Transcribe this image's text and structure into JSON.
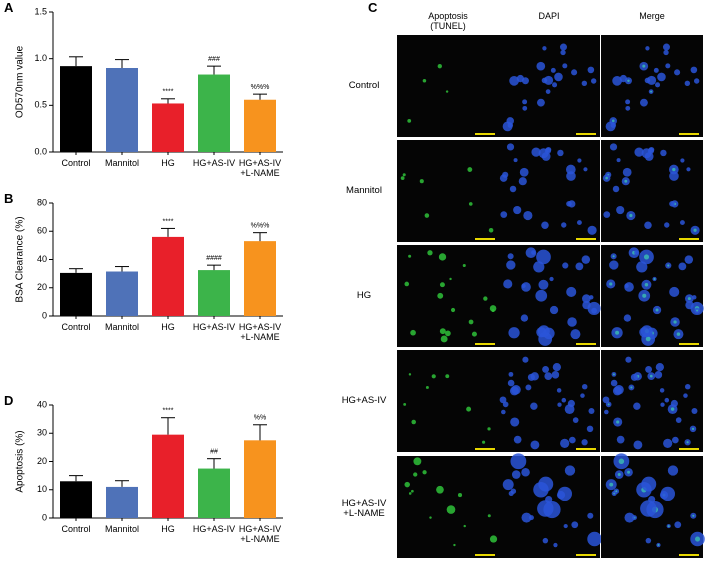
{
  "chart_data": [
    {
      "type": "bar",
      "label": "A",
      "ylabel": "OD570nm value",
      "categories": [
        "Control",
        "Mannitol",
        "HG",
        "HG+AS-IV",
        "HG+AS-IV\n+L-NAME"
      ],
      "values": [
        0.92,
        0.9,
        0.52,
        0.83,
        0.56
      ],
      "errors": [
        0.1,
        0.09,
        0.05,
        0.09,
        0.06
      ],
      "annotations": [
        null,
        null,
        "****",
        "###",
        "%%%"
      ],
      "colors": [
        "#000000",
        "#4f72b8",
        "#e8202a",
        "#3cb44a",
        "#f7931e"
      ],
      "ylim": [
        0,
        1.5
      ],
      "yticks": [
        {
          "value": 0,
          "label": "0.0"
        },
        {
          "value": 0.5,
          "label": "0.5"
        },
        {
          "value": 1,
          "label": "1.0"
        },
        {
          "value": 1.5,
          "label": "1.5"
        }
      ]
    },
    {
      "type": "bar",
      "label": "B",
      "ylabel": "BSA Clearance (%)",
      "categories": [
        "Control",
        "Mannitol",
        "HG",
        "HG+AS-IV",
        "HG+AS-IV\n+L-NAME"
      ],
      "values": [
        30.5,
        31.5,
        56,
        32.5,
        53
      ],
      "errors": [
        3,
        3.5,
        6,
        3.5,
        6
      ],
      "annotations": [
        null,
        null,
        "****",
        "####",
        "%%%"
      ],
      "colors": [
        "#000000",
        "#4f72b8",
        "#e8202a",
        "#3cb44a",
        "#f7931e"
      ],
      "ylim": [
        0,
        80
      ],
      "yticks": [
        0,
        20,
        40,
        60,
        80
      ]
    },
    {
      "type": "bar",
      "label": "D",
      "ylabel": "Apoptosis (%)",
      "categories": [
        "Control",
        "Mannitol",
        "HG",
        "HG+AS-IV",
        "HG+AS-IV\n+L-NAME"
      ],
      "values": [
        13,
        11,
        29.5,
        17.5,
        27.5
      ],
      "errors": [
        2,
        2.2,
        6,
        3.5,
        5.5
      ],
      "annotations": [
        null,
        null,
        "****",
        "##",
        "%%"
      ],
      "colors": [
        "#000000",
        "#4f72b8",
        "#e8202a",
        "#3cb44a",
        "#f7931e"
      ],
      "ylim": [
        0,
        40
      ],
      "yticks": [
        0,
        10,
        20,
        30,
        40
      ]
    }
  ],
  "microscopy": {
    "label": "C",
    "columns": [
      "Apoptosis\n(TUNEL)",
      "DAPI",
      "Merge"
    ],
    "rows": [
      "Control",
      "Mannitol",
      "HG",
      "HG+AS-IV",
      "HG+AS-IV\n+L-NAME"
    ]
  }
}
